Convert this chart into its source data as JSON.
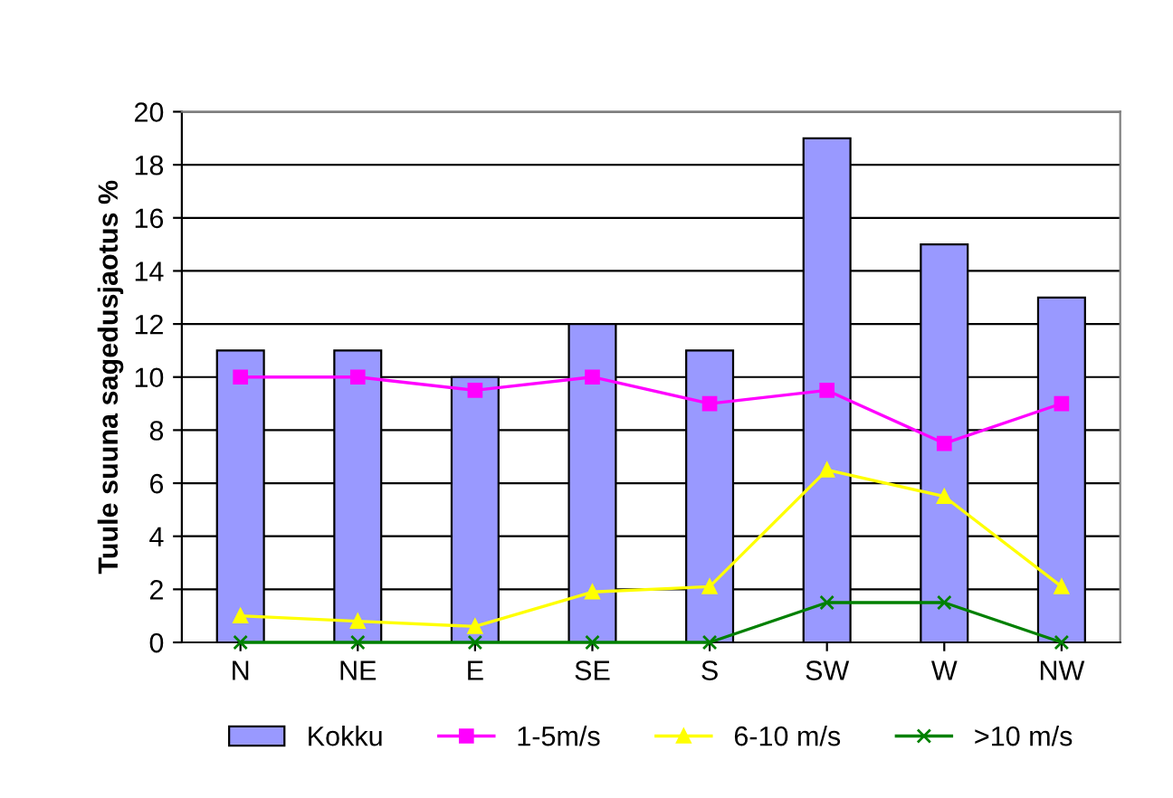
{
  "chart_data": {
    "type": "bar",
    "ylabel": "Tuule suuna sagedusjaotus %",
    "categories": [
      "N",
      "NE",
      "E",
      "SE",
      "S",
      "SW",
      "W",
      "NW"
    ],
    "series": [
      {
        "name": "Kokku",
        "color": "#9999ff",
        "values": [
          11,
          11,
          10,
          12,
          11,
          19,
          15,
          13
        ]
      },
      {
        "name": "1-5m/s",
        "type": "line",
        "color": "#ff00ff",
        "marker": "square",
        "values": [
          10,
          10,
          9.5,
          10,
          9,
          9.5,
          7.5,
          9
        ]
      },
      {
        "name": "6-10 m/s",
        "type": "line",
        "color": "#ffff00",
        "marker": "triangle",
        "values": [
          1,
          0.8,
          0.6,
          1.9,
          2.1,
          6.5,
          5.5,
          2.1
        ]
      },
      {
        "name": ">10 m/s",
        "type": "line",
        "color": "#008000",
        "marker": "cross",
        "values": [
          0,
          0,
          0,
          0,
          0,
          1.5,
          1.5,
          0
        ]
      }
    ],
    "ylim": [
      0,
      20
    ],
    "yticks": [
      0,
      2,
      4,
      6,
      8,
      10,
      12,
      14,
      16,
      18,
      20
    ],
    "grid": "y",
    "legend": "bottom"
  }
}
